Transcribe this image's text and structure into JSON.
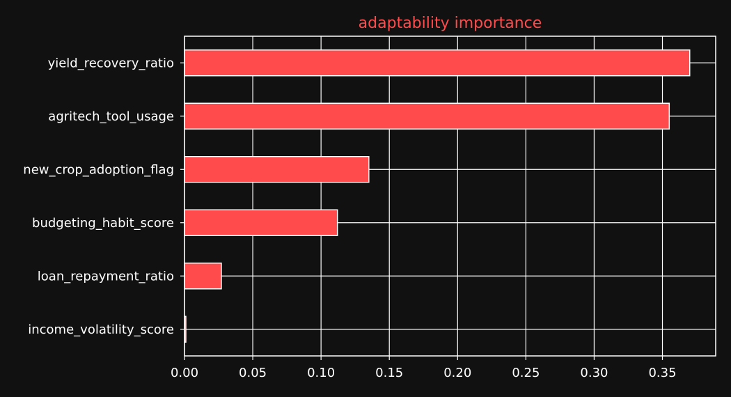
{
  "chart_data": {
    "type": "bar",
    "orientation": "horizontal",
    "title": "adaptability importance",
    "xlabel": "",
    "ylabel": "",
    "categories": [
      "yield_recovery_ratio",
      "agritech_tool_usage",
      "new_crop_adoption_flag",
      "budgeting_habit_score",
      "loan_repayment_ratio",
      "income_volatility_score"
    ],
    "values": [
      0.37,
      0.355,
      0.135,
      0.112,
      0.027,
      0.001
    ],
    "xlim": [
      0.0,
      0.389
    ],
    "xticks": [
      0.0,
      0.05,
      0.1,
      0.15,
      0.2,
      0.25,
      0.3,
      0.35
    ],
    "xtick_labels": [
      "0.00",
      "0.05",
      "0.10",
      "0.15",
      "0.20",
      "0.25",
      "0.30",
      "0.35"
    ],
    "grid": true,
    "legend": "none",
    "colors": {
      "background": "#111111",
      "bar_fill": "#ff4b4b",
      "bar_edge": "#ffffff",
      "grid": "#ffffff",
      "text": "#ffffff",
      "title": "#ff4b4b"
    }
  }
}
